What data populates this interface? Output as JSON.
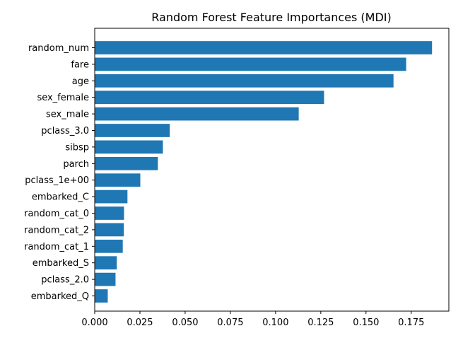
{
  "chart_data": {
    "type": "bar",
    "orientation": "horizontal",
    "title": "Random Forest Feature Importances (MDI)",
    "xlabel": "",
    "ylabel": "",
    "categories": [
      "random_num",
      "fare",
      "age",
      "sex_female",
      "sex_male",
      "pclass_3.0",
      "sibsp",
      "parch",
      "pclass_1e+00",
      "embarked_C",
      "random_cat_0",
      "random_cat_2",
      "random_cat_1",
      "embarked_S",
      "pclass_2.0",
      "embarked_Q"
    ],
    "values": [
      0.1865,
      0.1722,
      0.1652,
      0.1268,
      0.1128,
      0.0415,
      0.0377,
      0.0349,
      0.0252,
      0.0181,
      0.0162,
      0.0161,
      0.0155,
      0.0122,
      0.0115,
      0.0072
    ],
    "xlim": [
      0,
      0.1958
    ],
    "xticks": [
      0.0,
      0.025,
      0.05,
      0.075,
      0.1,
      0.125,
      0.15,
      0.175
    ],
    "xtick_labels": [
      "0.000",
      "0.025",
      "0.050",
      "0.075",
      "0.100",
      "0.125",
      "0.150",
      "0.175"
    ],
    "bar_color": "#1f77b4",
    "grid": false,
    "legend": "none"
  }
}
